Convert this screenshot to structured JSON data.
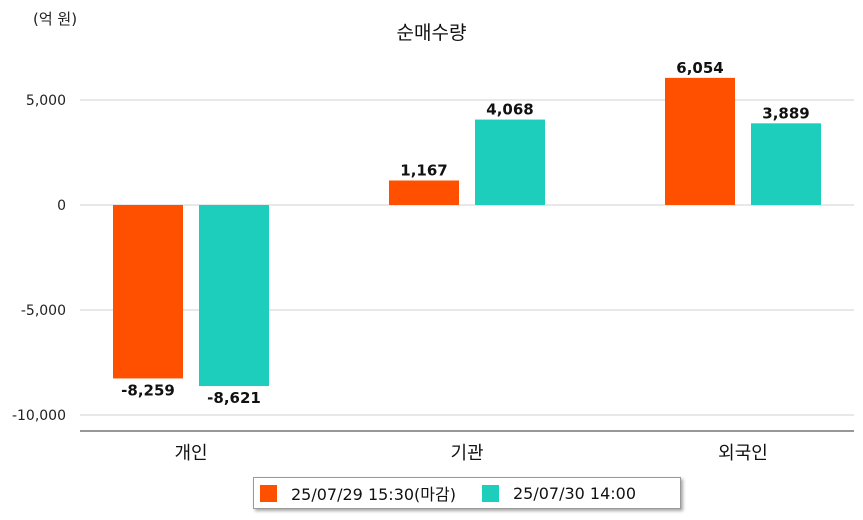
{
  "chart_data": {
    "type": "bar",
    "title": "순매수량",
    "unit_label": "(억 원)",
    "categories": [
      "개인",
      "기관",
      "외국인"
    ],
    "series": [
      {
        "name": "25/07/29 15:30(마감)",
        "color": "#ff5000",
        "values": [
          -8259,
          1167,
          6054
        ]
      },
      {
        "name": "25/07/30 14:00",
        "color": "#1ecebc",
        "values": [
          -8621,
          4068,
          3889
        ]
      }
    ],
    "data_labels": [
      [
        "-8,259",
        "1,167",
        "6,054"
      ],
      [
        "-8,621",
        "4,068",
        "3,889"
      ]
    ],
    "y_ticks": [
      5000,
      0,
      -5000,
      -10000
    ],
    "y_tick_labels": [
      "5,000",
      "0",
      "-5,000",
      "-10,000"
    ],
    "ylim": [
      -10800,
      6100
    ],
    "grid": true,
    "legend_position": "bottom"
  }
}
